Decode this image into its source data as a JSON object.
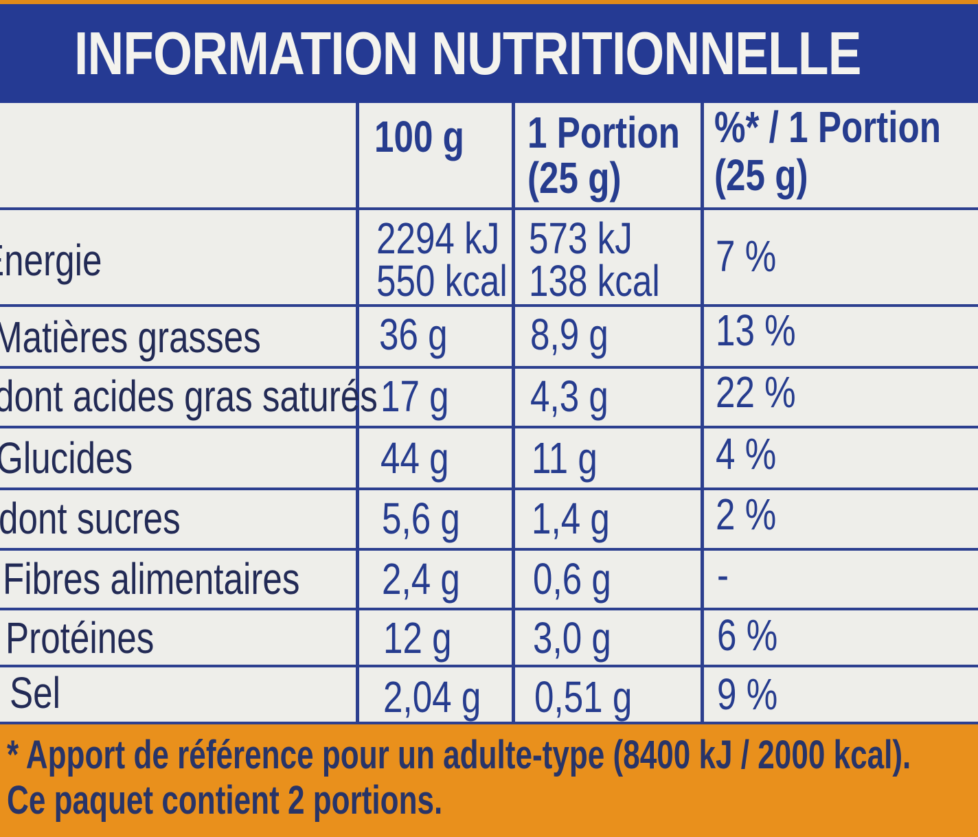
{
  "title": "INFORMATION NUTRITIONNELLE",
  "columns": {
    "per100": "100 g",
    "portion_line1": "1 Portion",
    "portion_line2": "(25 g)",
    "pct_line1": "%* / 1 Portion",
    "pct_line2": "(25 g)"
  },
  "rows": [
    {
      "label": "Energie",
      "per100_line1": "2294 kJ",
      "per100_line2": "550 kcal",
      "portion_line1": "573 kJ",
      "portion_line2": "138 kcal",
      "pct": "7 %"
    },
    {
      "label": "Matières grasses",
      "per100": "36 g",
      "portion": "8,9 g",
      "pct": "13 %"
    },
    {
      "label": "dont acides gras saturés",
      "per100": "17 g",
      "portion": "4,3 g",
      "pct": "22 %"
    },
    {
      "label": "Glucides",
      "per100": "44 g",
      "portion": "11 g",
      "pct": "4 %"
    },
    {
      "label": "dont sucres",
      "per100": "5,6 g",
      "portion": "1,4 g",
      "pct": "2 %"
    },
    {
      "label": "Fibres alimentaires",
      "per100": "2,4 g",
      "portion": "0,6 g",
      "pct": "-"
    },
    {
      "label": "Protéines",
      "per100": "12 g",
      "portion": "3,0 g",
      "pct": "6 %"
    },
    {
      "label": "Sel",
      "per100": "2,04 g",
      "portion": "0,51 g",
      "pct": "9 %"
    }
  ],
  "footnote_line1": "* Apport de référence pour un adulte-type (8400 kJ / 2000 kcal).",
  "footnote_line2": "Ce paquet contient 2 portions.",
  "colors": {
    "header_blue": "#253a93",
    "table_text": "#263c8e",
    "panel": "#eeeeea",
    "package_orange": "#e9901c"
  }
}
